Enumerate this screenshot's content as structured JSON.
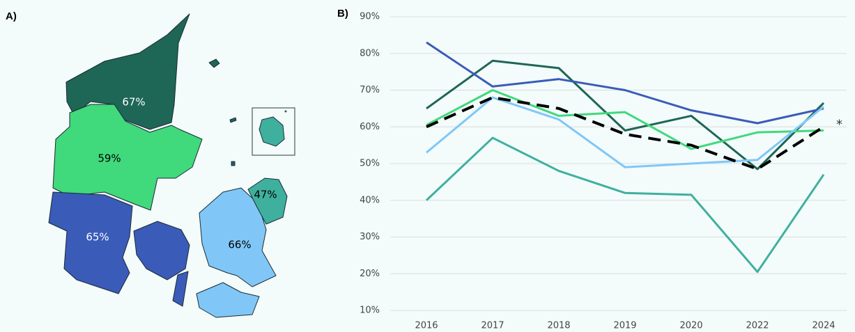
{
  "chart_data": [
    {
      "type": "map",
      "title": "A)",
      "values": [
        67,
        59,
        65,
        66,
        47
      ],
      "value_labels": [
        "67%",
        "59%",
        "65%",
        "66%",
        "47%"
      ],
      "colors": [
        "#1e6655",
        "#40d97c",
        "#3a5bb8",
        "#80c7f7",
        "#3fb09e"
      ]
    },
    {
      "type": "line",
      "title": "B)",
      "categories": [
        "2016",
        "2017",
        "2018",
        "2019",
        "2020",
        "2022",
        "2024"
      ],
      "ylim": [
        10,
        90
      ],
      "yticks": [
        {
          "value": 10,
          "label": "10%"
        },
        {
          "value": 20,
          "label": "20%"
        },
        {
          "value": 30,
          "label": "30%"
        },
        {
          "value": 40,
          "label": "40%"
        },
        {
          "value": 50,
          "label": "50%"
        },
        {
          "value": 60,
          "label": "60%"
        },
        {
          "value": 70,
          "label": "70%"
        },
        {
          "value": 80,
          "label": "80%"
        },
        {
          "value": 90,
          "label": "90%"
        }
      ],
      "grid": true,
      "annotation": "*",
      "series": [
        {
          "color": "#1e6655",
          "values": [
            65,
            78,
            76,
            59,
            63,
            48.5,
            66.5
          ]
        },
        {
          "color": "#40d97c",
          "values": [
            60.5,
            70,
            63,
            64,
            54,
            58.5,
            59
          ]
        },
        {
          "color": "#3a5bb8",
          "values": [
            83,
            71,
            73,
            70,
            64.5,
            61,
            65
          ]
        },
        {
          "color": "#80c7f7",
          "values": [
            53,
            68,
            62,
            49,
            50,
            51,
            65.5
          ]
        },
        {
          "color": "#3fb09e",
          "values": [
            40,
            57,
            48,
            42,
            41.5,
            20.5,
            47
          ]
        },
        {
          "color": "#000000",
          "dashed": true,
          "values": [
            60,
            68,
            65,
            58,
            55,
            48.5,
            60
          ]
        }
      ]
    }
  ]
}
